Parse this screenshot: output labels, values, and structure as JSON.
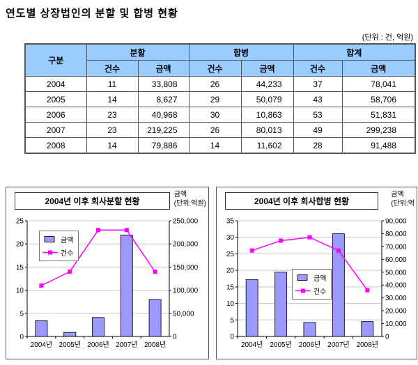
{
  "page": {
    "title": "연도별 상장법인의 분할 및 합병 현황",
    "unit_note": "(단위 : 건, 억원)"
  },
  "colors": {
    "table_header_bg": "#99CCFF",
    "bar": "#9999FF",
    "line": "#FF00FF"
  },
  "table": {
    "corner_header": "구분",
    "groups": [
      {
        "label": "분할",
        "sub": [
          "건수",
          "금액"
        ]
      },
      {
        "label": "합병",
        "sub": [
          "건수",
          "금액"
        ]
      },
      {
        "label": "합계",
        "sub": [
          "건수",
          "금액"
        ]
      }
    ],
    "rows": [
      {
        "year": "2004",
        "cells": [
          "11",
          "33,808",
          "26",
          "44,233",
          "37",
          "78,041"
        ]
      },
      {
        "year": "2005",
        "cells": [
          "14",
          "8,627",
          "29",
          "50,079",
          "43",
          "58,706"
        ]
      },
      {
        "year": "2006",
        "cells": [
          "23",
          "40,968",
          "30",
          "10,863",
          "53",
          "51,831"
        ]
      },
      {
        "year": "2007",
        "cells": [
          "23",
          "219,225",
          "26",
          "80,013",
          "49",
          "299,238"
        ]
      },
      {
        "year": "2008",
        "cells": [
          "14",
          "79,886",
          "14",
          "11,602",
          "28",
          "91,488"
        ]
      }
    ]
  },
  "chart_data": [
    {
      "type": "combo",
      "title": "2004년 이후 회사분할 현황",
      "axis_unit_label": [
        "금액",
        "(단위:억원)"
      ],
      "categories": [
        "2004년",
        "2005년",
        "2006년",
        "2007년",
        "2008년"
      ],
      "series": [
        {
          "name": "금액",
          "render": "bar",
          "axis": "right",
          "values": [
            33808,
            8627,
            40968,
            219225,
            79886
          ],
          "color": "#9999FF"
        },
        {
          "name": "건수",
          "render": "line",
          "axis": "left",
          "values": [
            11,
            14,
            23,
            23,
            14
          ],
          "color": "#FF00FF"
        }
      ],
      "left_axis": {
        "min": 0,
        "max": 25,
        "step": 5
      },
      "right_axis": {
        "min": 0,
        "max": 250000,
        "step": 50000
      },
      "grid": true,
      "legend_position": "inside-upper-left"
    },
    {
      "type": "combo",
      "title": "2004년 이후 회사합병 현황",
      "axis_unit_label": [
        "금액",
        "(단위:억"
      ],
      "categories": [
        "2004년",
        "2005년",
        "2006년",
        "2007년",
        "2008년"
      ],
      "series": [
        {
          "name": "금액",
          "render": "bar",
          "axis": "right",
          "values": [
            44233,
            50079,
            10863,
            80013,
            11602
          ],
          "color": "#9999FF"
        },
        {
          "name": "건수",
          "render": "line",
          "axis": "left",
          "values": [
            26,
            29,
            30,
            26,
            14
          ],
          "color": "#FF00FF"
        }
      ],
      "left_axis": {
        "min": 0,
        "max": 35,
        "step": 5
      },
      "right_axis": {
        "min": 0,
        "max": 90000,
        "step": 10000
      },
      "grid": true,
      "legend_position": "inside-middle"
    }
  ]
}
